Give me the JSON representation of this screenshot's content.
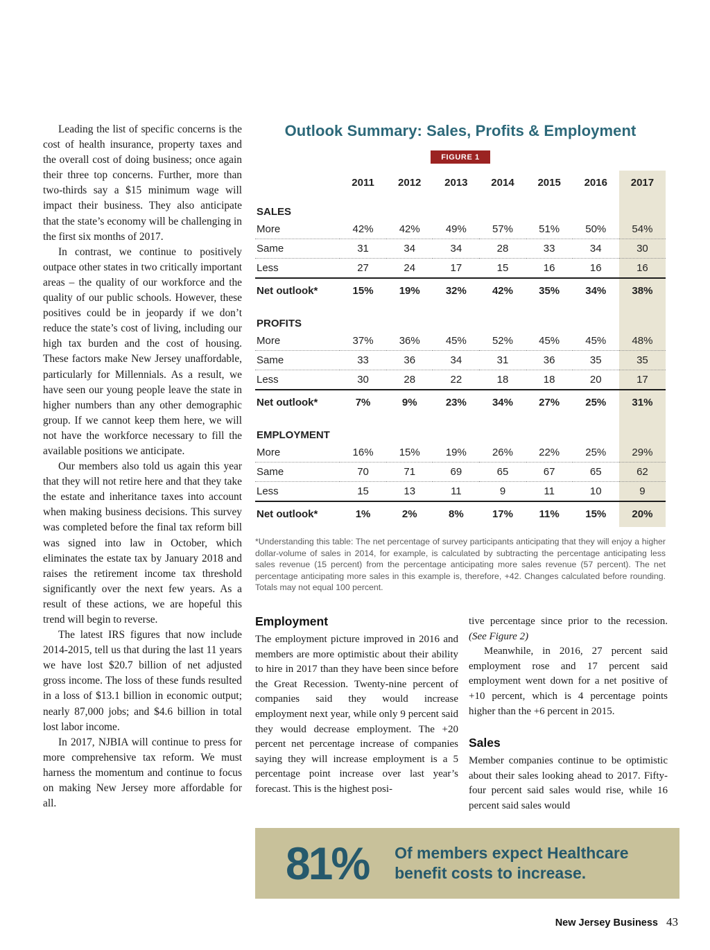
{
  "left_column": {
    "paragraphs": [
      "Leading the list of specific concerns is the cost of health insurance, property taxes and the overall cost of doing business; once again their three top concerns. Further, more than two-thirds say a $15 minimum wage will impact their business. They also anticipate that the state’s economy will be challenging in the first six months of 2017.",
      "In contrast, we continue to positively outpace other states in two critically important areas – the quality of our workforce and the quality of our public schools. However, these positives could be in jeopardy if we don’t reduce the state’s cost of living, including our high tax burden and the cost of housing. These factors make New Jersey unaffordable, particularly for Millennials. As a result, we have seen our young people leave the state in higher numbers than any other demographic group. If we cannot keep them here, we will not have the workforce necessary to fill the available positions we anticipate.",
      "Our members also told us again this year that they will not retire here and that they take the estate and inheritance taxes into account when making business decisions. This survey was completed before the final tax reform bill was signed into law in October, which eliminates the estate tax by January 2018 and raises the retirement income tax threshold significantly over the next few years. As a result of these actions, we are hopeful this trend will begin to reverse.",
      "The latest IRS figures that now include 2014-2015, tell us that during the last 11 years we have lost $20.7 billion of net adjusted gross income. The loss of these funds resulted in a loss of $13.1 billion in economic output; nearly 87,000 jobs; and $4.6 billion in total lost labor income.",
      "In 2017, NJBIA will continue to press for more comprehensive tax reform. We must harness the momentum and continue to focus on making New Jersey more affordable for all."
    ]
  },
  "figure": {
    "title": "Outlook Summary: Sales, Profits & Employment",
    "badge": "FIGURE 1",
    "years": [
      "2011",
      "2012",
      "2013",
      "2014",
      "2015",
      "2016",
      "2017"
    ],
    "highlight_year": "2017",
    "sections": [
      {
        "name": "SALES",
        "rows": [
          {
            "label": "More",
            "values": [
              "42%",
              "42%",
              "49%",
              "57%",
              "51%",
              "50%",
              "54%"
            ]
          },
          {
            "label": "Same",
            "values": [
              "31",
              "34",
              "34",
              "28",
              "33",
              "34",
              "30"
            ]
          },
          {
            "label": "Less",
            "values": [
              "27",
              "24",
              "17",
              "15",
              "16",
              "16",
              "16"
            ]
          },
          {
            "label": "Net outlook*",
            "values": [
              "15%",
              "19%",
              "32%",
              "42%",
              "35%",
              "34%",
              "38%"
            ]
          }
        ]
      },
      {
        "name": "PROFITS",
        "rows": [
          {
            "label": "More",
            "values": [
              "37%",
              "36%",
              "45%",
              "52%",
              "45%",
              "45%",
              "48%"
            ]
          },
          {
            "label": "Same",
            "values": [
              "33",
              "36",
              "34",
              "31",
              "36",
              "35",
              "35"
            ]
          },
          {
            "label": "Less",
            "values": [
              "30",
              "28",
              "22",
              "18",
              "18",
              "20",
              "17"
            ]
          },
          {
            "label": "Net outlook*",
            "values": [
              "7%",
              "9%",
              "23%",
              "34%",
              "27%",
              "25%",
              "31%"
            ]
          }
        ]
      },
      {
        "name": "EMPLOYMENT",
        "rows": [
          {
            "label": "More",
            "values": [
              "16%",
              "15%",
              "19%",
              "26%",
              "22%",
              "25%",
              "29%"
            ]
          },
          {
            "label": "Same",
            "values": [
              "70",
              "71",
              "69",
              "65",
              "67",
              "65",
              "62"
            ]
          },
          {
            "label": "Less",
            "values": [
              "15",
              "13",
              "11",
              "9",
              "11",
              "10",
              "9"
            ]
          },
          {
            "label": "Net outlook*",
            "values": [
              "1%",
              "2%",
              "8%",
              "17%",
              "11%",
              "15%",
              "20%"
            ]
          }
        ]
      }
    ],
    "footnote": "*Understanding this table: The net percentage of survey participants anticipating that they will enjoy a higher dollar-volume of sales in 2014, for example, is calculated by subtracting the percentage anticipating less sales revenue (15 percent) from the percentage anticipating more sales revenue (57 percent). The net percentage anticipating more sales in this example is, therefore, +42. Changes calculated before rounding. Totals may not equal 100 percent."
  },
  "employment_section": {
    "heading": "Employment",
    "body": "The employment picture improved in 2016 and members are more optimistic about their ability to hire in 2017 than they have been since before the Great Recession. Twenty-nine percent of companies said they would increase employment next year, while only 9 percent said they would decrease employment. The +20 percent net percentage increase of companies saying they will increase employment is a 5 percentage point increase over last year’s forecast. This is the highest posi-"
  },
  "right_column": {
    "continuation": "tive percentage since prior to the recession. ",
    "see_figure": "(See Figure 2)",
    "para2": "Meanwhile, in 2016, 27 percent said employment rose and 17 percent said employment went down for a net positive of +10 percent, which is 4 percentage points higher than the +6 percent in 2015.",
    "sales_heading": "Sales",
    "sales_body": "Member companies continue to be optimistic about their sales looking ahead to 2017. Fifty-four percent said sales would rise, while 16 percent said sales would"
  },
  "banner": {
    "stat": "81%",
    "text": "Of members expect Healthcare benefit costs to increase."
  },
  "footer": {
    "magazine": "New Jersey Business",
    "page_number": "43"
  },
  "colors": {
    "title_teal": "#2c6879",
    "banner_teal": "#26596c",
    "badge_red": "#9b2322",
    "highlight_beige": "#e9e5d4",
    "banner_tan": "#c8c19a"
  }
}
